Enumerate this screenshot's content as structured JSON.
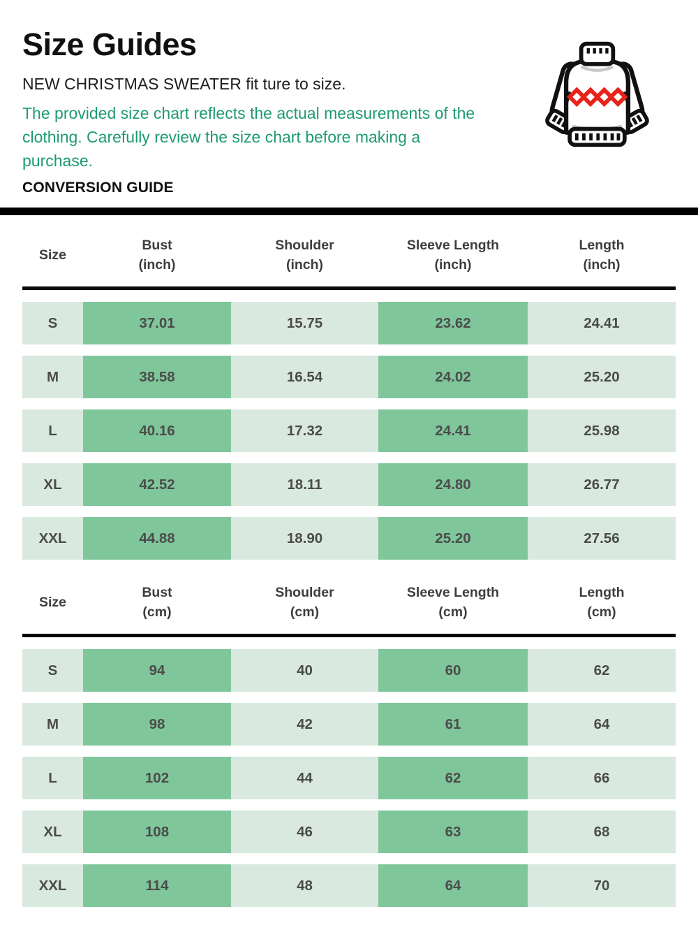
{
  "header": {
    "title": "Size Guides",
    "subtitle": "NEW CHRISTMAS SWEATER fit ture to size.",
    "note": "The provided size chart reflects the actual measurements of the clothing. Carefully review the size chart before making a purchase.",
    "conversion_label": "CONVERSION GUIDE"
  },
  "icon": {
    "name": "christmas-sweater-icon",
    "pattern": "red-diamonds"
  },
  "colors": {
    "note_green": "#1e9b6e",
    "cell_light": "#d9e9df",
    "cell_dark": "#7fc79b",
    "value_text": "#4b4b4b",
    "divider_black": "#000000",
    "sweater_red": "#e8231a"
  },
  "tables": [
    {
      "name": "inches",
      "columns": [
        {
          "key": "size",
          "label": "Size",
          "unit": ""
        },
        {
          "key": "bust",
          "label": "Bust",
          "unit": "(inch)"
        },
        {
          "key": "shoulder",
          "label": "Shoulder",
          "unit": "(inch)"
        },
        {
          "key": "sleeve-length",
          "label": "Sleeve Length",
          "unit": "(inch)"
        },
        {
          "key": "length",
          "label": "Length",
          "unit": "(inch)"
        }
      ],
      "rows": [
        {
          "size": "S",
          "values": [
            "37.01",
            "15.75",
            "23.62",
            "24.41"
          ]
        },
        {
          "size": "M",
          "values": [
            "38.58",
            "16.54",
            "24.02",
            "25.20"
          ]
        },
        {
          "size": "L",
          "values": [
            "40.16",
            "17.32",
            "24.41",
            "25.98"
          ]
        },
        {
          "size": "XL",
          "values": [
            "42.52",
            "18.11",
            "24.80",
            "26.77"
          ]
        },
        {
          "size": "XXL",
          "values": [
            "44.88",
            "18.90",
            "25.20",
            "27.56"
          ]
        }
      ]
    },
    {
      "name": "centimeters",
      "columns": [
        {
          "key": "size",
          "label": "Size",
          "unit": ""
        },
        {
          "key": "bust",
          "label": "Bust",
          "unit": "(cm)"
        },
        {
          "key": "shoulder",
          "label": "Shoulder",
          "unit": "(cm)"
        },
        {
          "key": "sleeve-length",
          "label": "Sleeve Length",
          "unit": "(cm)"
        },
        {
          "key": "length",
          "label": "Length",
          "unit": "(cm)"
        }
      ],
      "rows": [
        {
          "size": "S",
          "values": [
            "94",
            "40",
            "60",
            "62"
          ]
        },
        {
          "size": "M",
          "values": [
            "98",
            "42",
            "61",
            "64"
          ]
        },
        {
          "size": "L",
          "values": [
            "102",
            "44",
            "62",
            "66"
          ]
        },
        {
          "size": "XL",
          "values": [
            "108",
            "46",
            "63",
            "68"
          ]
        },
        {
          "size": "XXL",
          "values": [
            "114",
            "48",
            "64",
            "70"
          ]
        }
      ]
    }
  ]
}
